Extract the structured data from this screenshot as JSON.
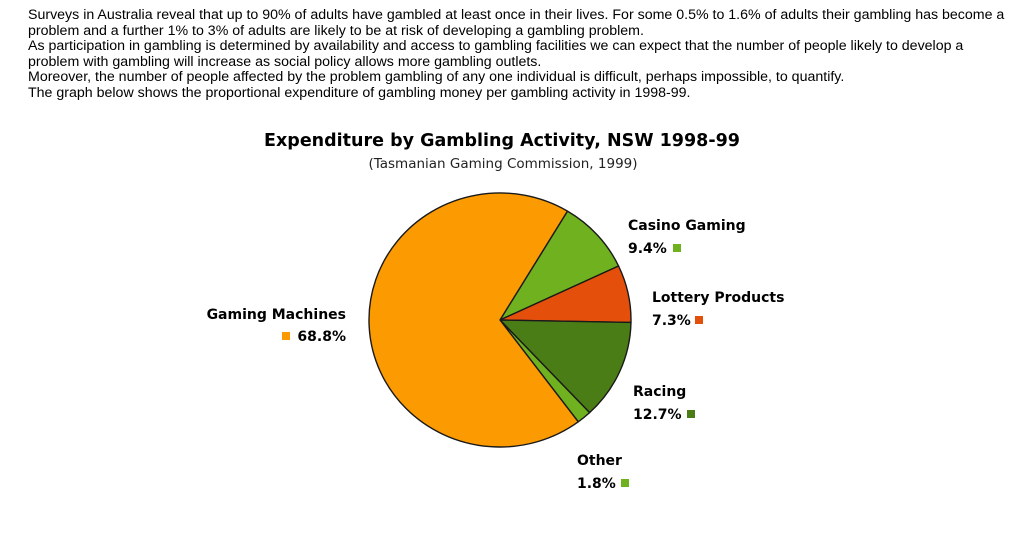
{
  "intro": {
    "paragraphs": [
      "Surveys in Australia reveal that up to 90% of adults have gambled at least once in their lives. For some 0.5% to 1.6% of adults their gambling has become a problem and a further 1% to 3% of adults are likely to be at risk of developing a gambling problem.",
      "As participation in gambling is determined by availability and access to gambling facilities we can expect that the number of people likely to develop a problem with gambling will increase as social policy allows more gambling outlets.",
      "Moreover, the number of people affected by the problem gambling of any one individual is difficult, perhaps impossible, to quantify.",
      "The graph below shows the proportional expenditure of gambling money per gambling activity in 1998-99."
    ]
  },
  "chart_data": {
    "type": "pie",
    "title": "Expenditure by Gambling Activity, NSW 1998-99",
    "subtitle": "(Tasmanian Gaming Commission, 1999)",
    "unit": "%",
    "slices": [
      {
        "name": "Casino Gaming",
        "value": 9.4,
        "value_label": "9.4%",
        "color": "#6fb11e"
      },
      {
        "name": "Lottery Products",
        "value": 7.3,
        "value_label": "7.3%",
        "color": "#e4500c"
      },
      {
        "name": "Racing",
        "value": 12.7,
        "value_label": "12.7%",
        "color": "#4a7d16"
      },
      {
        "name": "Other",
        "value": 1.8,
        "value_label": "1.8%",
        "color": "#6fb11e"
      },
      {
        "name": "Gaming Machines",
        "value": 68.8,
        "value_label": "68.8%",
        "color": "#fc9a02"
      }
    ]
  }
}
